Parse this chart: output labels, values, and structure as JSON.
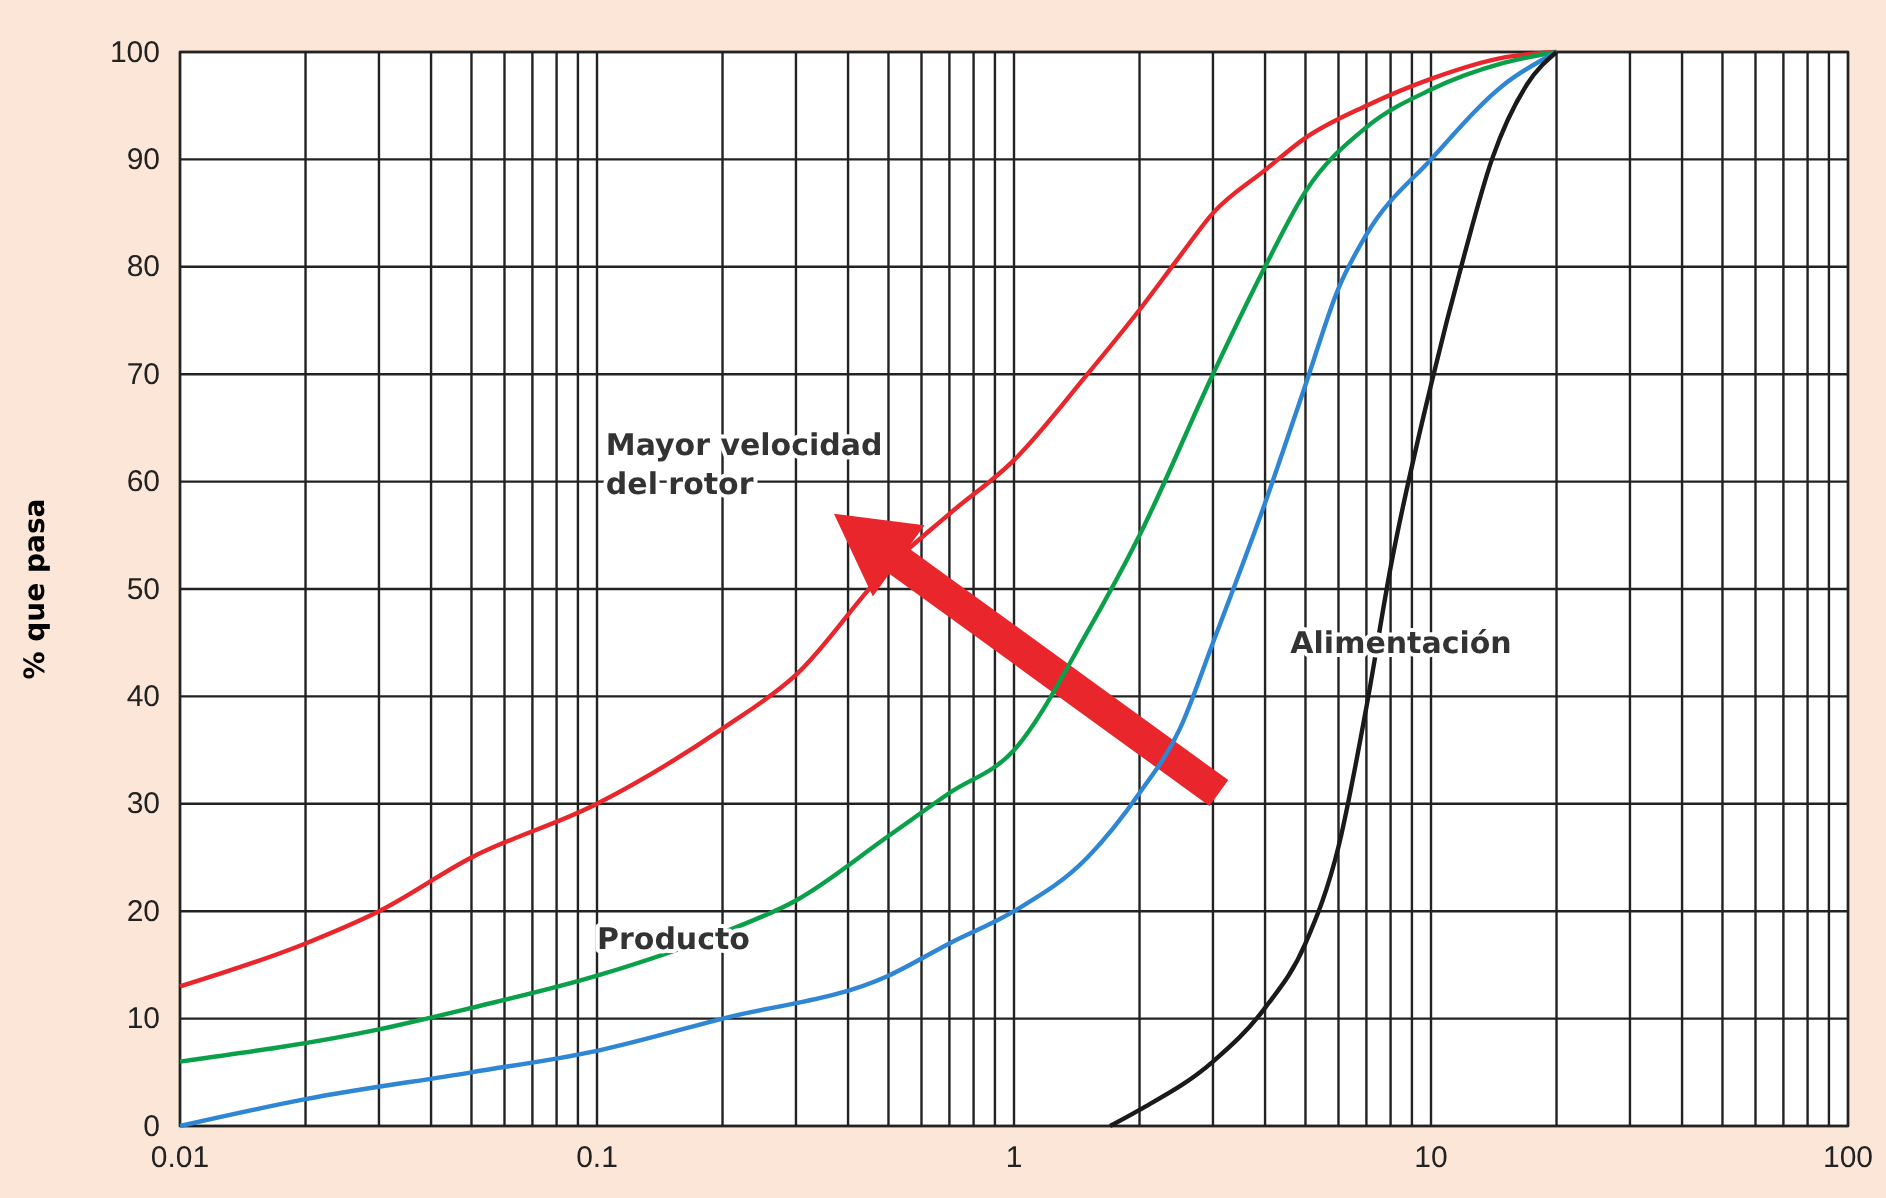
{
  "chart_data": {
    "type": "line",
    "ylabel": "% que pasa",
    "log": "x",
    "grid": true,
    "marker": "none",
    "line_style": "solid",
    "xlim": [
      0.01,
      100
    ],
    "ylim": [
      0,
      100
    ],
    "xticks": [
      0.01,
      {
        "value": 0.02,
        "label": null
      },
      {
        "value": 0.03,
        "label": null
      },
      {
        "value": 0.04,
        "label": null
      },
      {
        "value": 0.05,
        "label": null
      },
      {
        "value": 0.06,
        "label": null
      },
      {
        "value": 0.07,
        "label": null
      },
      {
        "value": 0.08,
        "label": null
      },
      {
        "value": 0.09,
        "label": null
      },
      0.1,
      {
        "value": 0.2,
        "label": null
      },
      {
        "value": 0.3,
        "label": null
      },
      {
        "value": 0.4,
        "label": null
      },
      {
        "value": 0.5,
        "label": null
      },
      {
        "value": 0.6,
        "label": null
      },
      {
        "value": 0.7,
        "label": null
      },
      {
        "value": 0.8,
        "label": null
      },
      {
        "value": 0.9,
        "label": null
      },
      1,
      {
        "value": 2,
        "label": null
      },
      {
        "value": 3,
        "label": null
      },
      {
        "value": 4,
        "label": null
      },
      {
        "value": 5,
        "label": null
      },
      {
        "value": 6,
        "label": null
      },
      {
        "value": 7,
        "label": null
      },
      {
        "value": 8,
        "label": null
      },
      {
        "value": 9,
        "label": null
      },
      10,
      {
        "value": 20,
        "label": null
      },
      {
        "value": 30,
        "label": null
      },
      {
        "value": 40,
        "label": null
      },
      {
        "value": 50,
        "label": null
      },
      {
        "value": 60,
        "label": null
      },
      {
        "value": 70,
        "label": null
      },
      {
        "value": 80,
        "label": null
      },
      {
        "value": 90,
        "label": null
      },
      100
    ],
    "yticks": [
      0,
      10,
      20,
      30,
      40,
      50,
      60,
      70,
      80,
      90,
      100
    ],
    "series": [
      {
        "color": "#e8262b",
        "x": [
          0.01,
          0.02,
          0.03,
          0.05,
          0.1,
          0.2,
          0.3,
          0.5,
          0.7,
          1,
          1.5,
          2,
          2.5,
          3,
          4,
          5,
          7,
          10,
          15,
          20
        ],
        "values": [
          13,
          17,
          20,
          25,
          30,
          37,
          42,
          52,
          57,
          62,
          70,
          76,
          81,
          85,
          89,
          92,
          95,
          97.5,
          99.5,
          100
        ]
      },
      {
        "color": "#0aa04a",
        "x": [
          0.01,
          0.03,
          0.05,
          0.1,
          0.2,
          0.3,
          0.5,
          0.7,
          1,
          1.5,
          2,
          3,
          4,
          5,
          7,
          10,
          15,
          20
        ],
        "values": [
          6,
          9,
          11,
          14,
          18,
          21,
          27,
          31,
          35,
          46,
          55,
          70,
          80,
          87,
          93,
          96.5,
          99,
          100
        ]
      },
      {
        "color": "#2e86d4",
        "x": [
          0.01,
          0.02,
          0.05,
          0.1,
          0.2,
          0.5,
          0.7,
          1,
          1.5,
          2,
          2.5,
          3,
          4,
          5,
          6,
          7,
          10,
          15,
          20
        ],
        "values": [
          0,
          2.5,
          5,
          7,
          10,
          14,
          17,
          20,
          25,
          31,
          37,
          45,
          58,
          69,
          78,
          83,
          90,
          97,
          100
        ]
      },
      {
        "color": "#1a1a1a",
        "x": [
          1.7,
          2,
          3,
          4,
          5,
          6,
          7,
          8,
          10,
          12,
          14,
          17,
          20
        ],
        "values": [
          0,
          1.5,
          6,
          11,
          17,
          26,
          39,
          52,
          69,
          81,
          90,
          97,
          100
        ]
      }
    ],
    "annotations": [
      "Mayor velocidad\ndel rotor",
      "Producto",
      "Alimentación"
    ]
  }
}
